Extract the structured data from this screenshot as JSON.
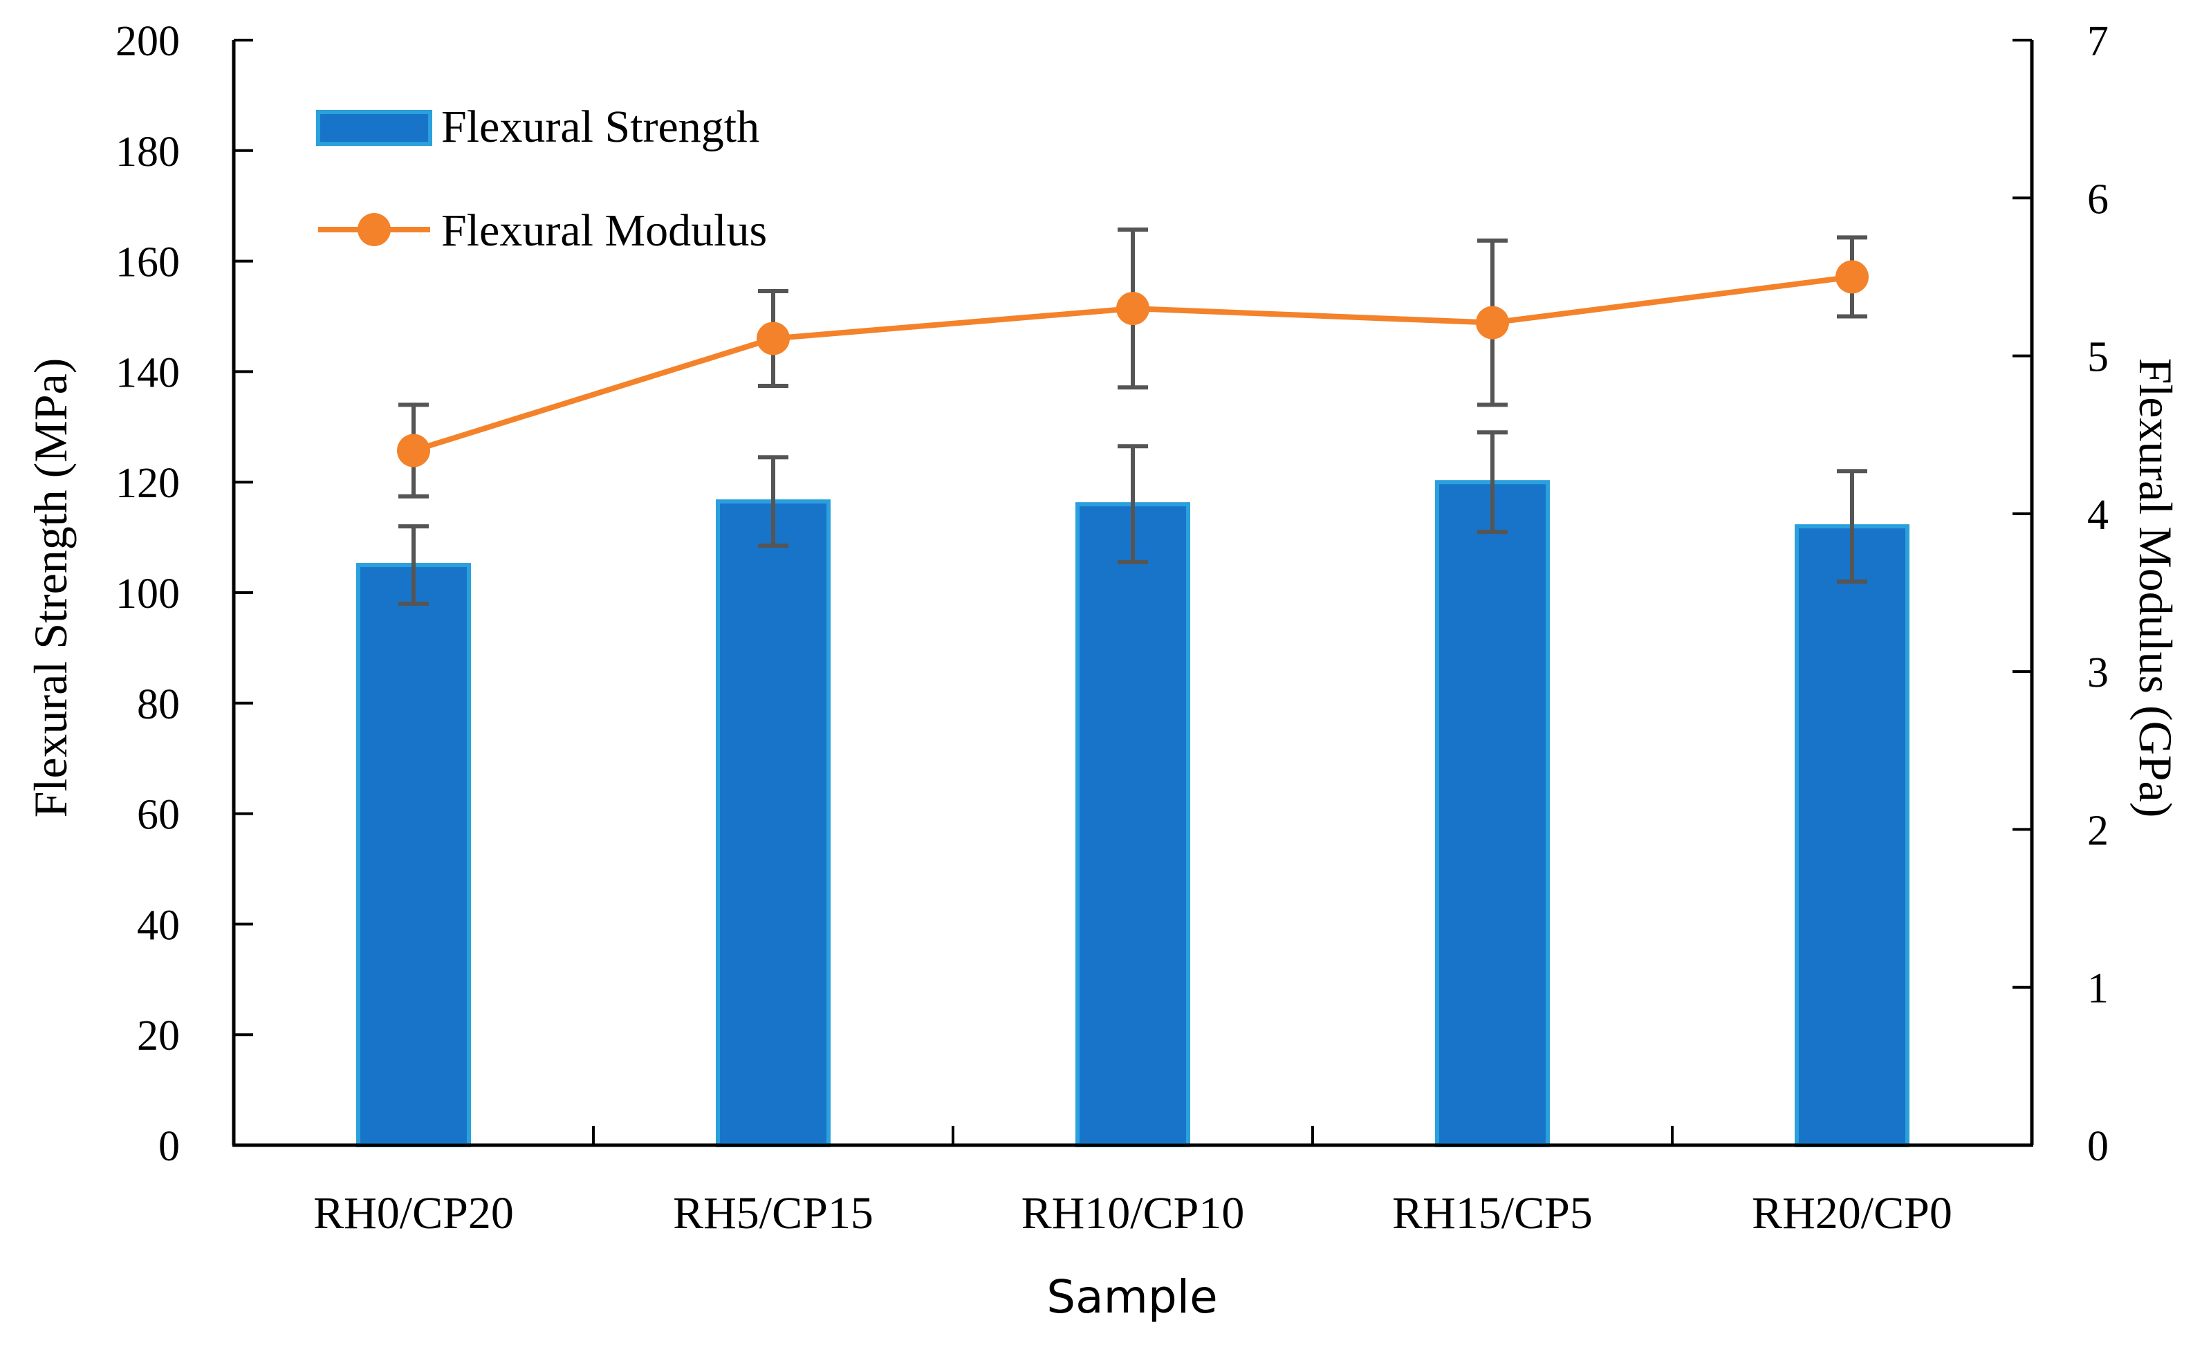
{
  "chart_data": {
    "type": "bar",
    "xlabel": "Sample",
    "categories": [
      "RH0/CP20",
      "RH5/CP15",
      "RH10/CP10",
      "RH15/CP5",
      "RH20/CP0"
    ],
    "series": [
      {
        "name": "Flexural Strength",
        "kind": "bar",
        "axis": "left",
        "values": [
          105,
          116.5,
          116,
          120,
          112
        ],
        "errors": [
          7,
          8,
          10.5,
          9,
          10
        ]
      },
      {
        "name": "Flexural Modulus",
        "kind": "line",
        "axis": "right",
        "values": [
          4.4,
          5.11,
          5.3,
          5.21,
          5.5
        ],
        "errors": [
          0.29,
          0.3,
          0.5,
          0.52,
          0.25
        ]
      }
    ],
    "left_axis": {
      "label": "Flexural Strength (MPa)",
      "ylim": [
        0,
        200
      ],
      "ticks": [
        0,
        20,
        40,
        60,
        80,
        100,
        120,
        140,
        160,
        180,
        200
      ]
    },
    "right_axis": {
      "label": "Flexural Modulus (GPa)",
      "ylim": [
        0,
        7
      ],
      "ticks": [
        0,
        1,
        2,
        3,
        4,
        5,
        6,
        7
      ]
    },
    "legend": [
      {
        "label": "Flexural Strength",
        "marker": "bar"
      },
      {
        "label": "Flexural Modulus",
        "marker": "line-circle"
      }
    ],
    "legend_position": "top-left",
    "grid": false,
    "colors": {
      "bar_fill": "#1874c8",
      "bar_edge": "#2aa0dc",
      "line": "#f4822a",
      "error_bar": "#555555",
      "axis": "#000000"
    }
  }
}
